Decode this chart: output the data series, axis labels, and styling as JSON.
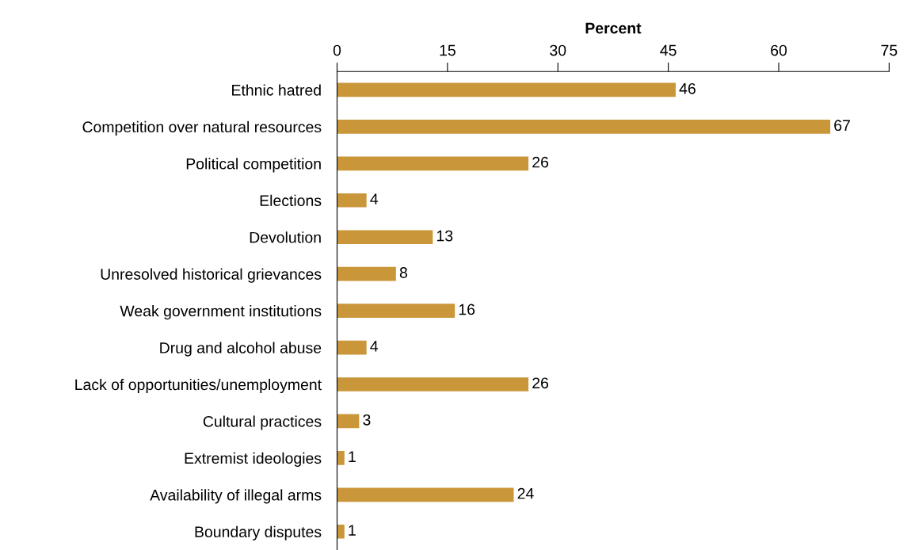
{
  "chart_data": {
    "type": "bar",
    "orientation": "horizontal",
    "xlabel": "Percent",
    "categories": [
      "Ethnic hatred",
      "Competition over natural resources",
      "Political competition",
      "Elections",
      "Devolution",
      "Unresolved historical grievances",
      "Weak government institutions",
      "Drug and alcohol abuse",
      "Lack of opportunities/unemployment",
      "Cultural practices",
      "Extremist ideologies",
      "Availability of illegal arms",
      "Boundary disputes"
    ],
    "values": [
      46,
      67,
      26,
      4,
      13,
      8,
      16,
      4,
      26,
      3,
      1,
      24,
      1
    ],
    "color": "#c9963a",
    "xlim": [
      0,
      75
    ],
    "xticks": [
      0,
      15,
      30,
      45,
      60,
      75
    ],
    "data_labels": true,
    "grid": false,
    "legend": false
  }
}
